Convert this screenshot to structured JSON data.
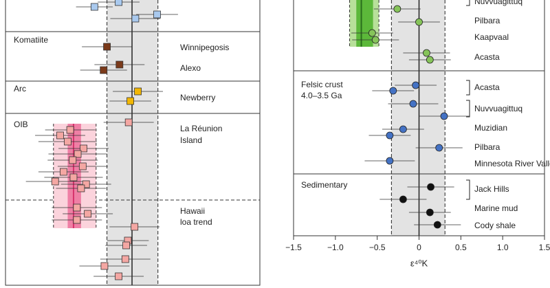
{
  "chart_data": [
    {
      "type": "scatter",
      "xlim": [
        -1.58,
        1.53
      ],
      "mean": 0,
      "band": [
        -0.3,
        0.31
      ],
      "groups": [
        {
          "color": "#a9c9ee",
          "labels": [],
          "points": [
            {
              "x": -0.45,
              "err": 0.22
            },
            {
              "x": -0.16,
              "err": 0.25
            },
            {
              "x": 0.04,
              "err": 0.3
            },
            {
              "x": 0.3,
              "err": 0.25
            }
          ]
        },
        {
          "name": "Komatiite",
          "color": "#7b3a1a",
          "labels": [
            [
              "Winnipegosis"
            ],
            [
              "Alexo"
            ]
          ],
          "points": [
            {
              "x": -0.3,
              "err": 0.3
            },
            {
              "x": -0.15,
              "err": 0.3
            },
            {
              "x": -0.34,
              "err": 0.28
            }
          ]
        },
        {
          "name": "Arc",
          "color": "#f2b705",
          "labels": [
            [
              "Newberry"
            ]
          ],
          "points": [
            {
              "x": 0.07,
              "err": 0.3
            },
            {
              "x": -0.02,
              "err": 0.25
            }
          ]
        },
        {
          "name": "OIB",
          "color": "#f4a7a3",
          "labels": [
            [
              "La Réunion",
              "Island"
            ],
            [
              "Hawaii",
              "loa trend"
            ]
          ],
          "average": {
            "x": -0.7,
            "band": [
              -0.77,
              -0.61
            ],
            "range": [
              -0.94,
              -0.43
            ]
          },
          "points": [
            {
              "x": -0.04,
              "err": 0.3
            },
            {
              "x": -0.74,
              "err": 0.3
            },
            {
              "x": -0.86,
              "err": 0.3
            },
            {
              "x": -0.77,
              "err": 0.35
            },
            {
              "x": -0.58,
              "err": 0.3
            },
            {
              "x": -0.65,
              "err": 0.35
            },
            {
              "x": -0.71,
              "err": 0.3
            },
            {
              "x": -0.59,
              "err": 0.3
            },
            {
              "x": -0.82,
              "err": 0.3
            },
            {
              "x": -0.7,
              "err": 0.35
            },
            {
              "x": -0.92,
              "err": 0.35
            },
            {
              "x": -0.55,
              "err": 0.3
            },
            {
              "x": -0.61,
              "err": 0.3
            },
            {
              "x": -0.66,
              "err": 0.3
            },
            {
              "x": -0.53,
              "err": 0.3
            },
            {
              "x": -0.66,
              "err": 0.3
            },
            {
              "x": 0.03,
              "err": 0.3
            },
            {
              "x": -0.05,
              "err": 0.25
            },
            {
              "x": -0.07,
              "err": 0.25
            },
            {
              "x": -0.08,
              "err": 0.3
            },
            {
              "x": -0.33,
              "err": 0.3
            },
            {
              "x": -0.16,
              "err": 0.3
            }
          ]
        }
      ]
    },
    {
      "type": "scatter",
      "xlim": [
        -1.5,
        1.5
      ],
      "xlabel": "ε⁴⁰K",
      "mean": 0,
      "band": [
        -0.33,
        0.31
      ],
      "xticks": [
        {
          "value": -1.5,
          "label": "−1.5"
        },
        {
          "value": -1,
          "label": "−1.0"
        },
        {
          "value": -0.5,
          "label": "−0.5"
        },
        0,
        0.5,
        {
          "value": 1,
          "label": "1.0"
        },
        1.5
      ],
      "groups": [
        {
          "color": "#86c45a",
          "labels": [
            [
              "Nuvvuagittuq"
            ],
            [
              "Pilbara"
            ],
            [
              "Kaapvaal"
            ],
            [
              "Acasta"
            ]
          ],
          "average": {
            "x": -0.69,
            "band": [
              -0.75,
              -0.55
            ],
            "range": [
              -0.83,
              -0.48
            ]
          },
          "points": [
            {
              "x": -0.26,
              "err": 0.28
            },
            {
              "x": 0.0,
              "err": 0.25
            },
            {
              "x": -0.56,
              "err": 0.25
            },
            {
              "x": -0.52,
              "err": 0.28
            },
            {
              "x": 0.09,
              "err": 0.28
            },
            {
              "x": 0.13,
              "err": 0.25
            }
          ]
        },
        {
          "name": [
            "Felsic crust",
            "4.0–3.5 Ga"
          ],
          "color": "#4472c4",
          "labels": [
            [
              "Acasta"
            ],
            [
              "Nuvvuagittuq"
            ],
            [
              "Muzidian"
            ],
            [
              "Pilbara"
            ],
            [
              "Minnesota River Valley"
            ]
          ],
          "points": [
            {
              "x": -0.04,
              "err": 0.25
            },
            {
              "x": -0.31,
              "err": 0.25
            },
            {
              "x": -0.07,
              "err": 0.3
            },
            {
              "x": 0.3,
              "err": 0.3
            },
            {
              "x": -0.19,
              "err": 0.25
            },
            {
              "x": -0.35,
              "err": 0.25
            },
            {
              "x": 0.24,
              "err": 0.28
            },
            {
              "x": -0.35,
              "err": 0.3
            }
          ]
        },
        {
          "name": [
            "Sedimentary"
          ],
          "color": "#111111",
          "labels": [
            [
              "Jack Hills"
            ],
            [
              "Marine mud"
            ],
            [
              "Cody shale"
            ]
          ],
          "points": [
            {
              "x": 0.14,
              "err": 0.28
            },
            {
              "x": -0.19,
              "err": 0.28
            },
            {
              "x": 0.13,
              "err": 0.25
            },
            {
              "x": 0.22,
              "err": 0.28
            }
          ]
        }
      ]
    }
  ]
}
